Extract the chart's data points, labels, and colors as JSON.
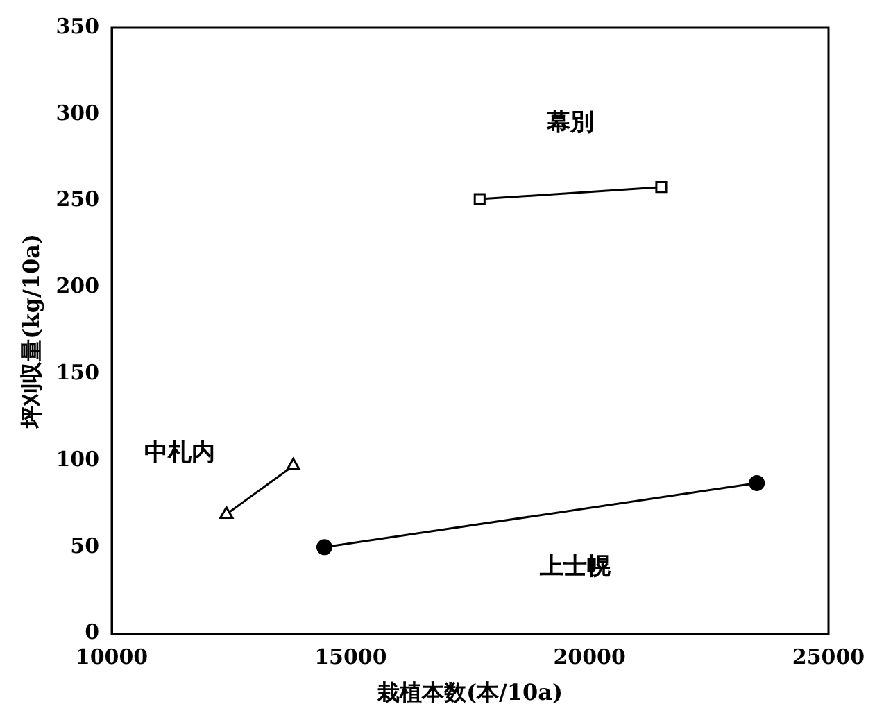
{
  "chart_data": {
    "type": "line",
    "xlabel": "栽植本数(本/10a)",
    "ylabel": "坪刈収量(kg/10a)",
    "xlim": [
      10000,
      25000
    ],
    "xticks": [
      10000,
      15000,
      20000,
      25000
    ],
    "ylim": [
      0,
      350
    ],
    "yticks": [
      0,
      50,
      100,
      150,
      200,
      250,
      300,
      350
    ],
    "grid": false,
    "legend": false,
    "series": [
      {
        "name": "幕別",
        "color": "#000000",
        "marker": "square",
        "x": [
          17700,
          21500
        ],
        "values": [
          251,
          258
        ]
      },
      {
        "name": "中札内",
        "color": "#000000",
        "marker": "triangle",
        "x": [
          12400,
          13800
        ],
        "values": [
          69,
          97
        ]
      },
      {
        "name": "上士幌",
        "color": "#000000",
        "marker": "circle",
        "x": [
          14450,
          23500
        ],
        "values": [
          50,
          87
        ]
      }
    ]
  }
}
